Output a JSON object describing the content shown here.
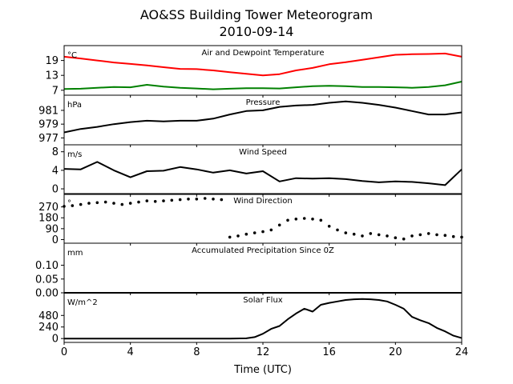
{
  "figure": {
    "title_line1": "AO&SS Building Tower Meteorogram",
    "title_line2": "2010-09-14",
    "xlabel": "Time (UTC)",
    "x_ticks": [
      "0",
      "4",
      "8",
      "12",
      "16",
      "20",
      "24"
    ]
  },
  "chart_data": [
    {
      "type": "line",
      "title": "Air and Dewpoint Temperature",
      "ylabel": "°C",
      "ylim": [
        5,
        25
      ],
      "yticks": [
        7,
        13,
        19
      ],
      "x": [
        0,
        1,
        2,
        3,
        4,
        5,
        6,
        7,
        8,
        9,
        10,
        11,
        12,
        13,
        14,
        15,
        16,
        17,
        18,
        19,
        20,
        21,
        22,
        23,
        24
      ],
      "series": [
        {
          "color": "#ff0000",
          "values": [
            20.5,
            19.8,
            19,
            18.2,
            17.6,
            17,
            16.3,
            15.6,
            15.5,
            15,
            14.3,
            13.6,
            13,
            13.5,
            15,
            16,
            17.5,
            18.3,
            19.3,
            20.3,
            21.3,
            21.5,
            21.6,
            21.8,
            20.5
          ]
        },
        {
          "color": "#008000",
          "values": [
            7.5,
            7.6,
            8,
            8.3,
            8.2,
            9.2,
            8.5,
            8,
            7.7,
            7.4,
            7.6,
            7.8,
            7.8,
            7.7,
            8.2,
            8.6,
            8.8,
            8.6,
            8.3,
            8.3,
            8.2,
            8,
            8.3,
            9,
            10.5
          ]
        }
      ]
    },
    {
      "type": "line",
      "title": "Pressure",
      "ylabel": "hPa",
      "ylim": [
        976,
        983.2
      ],
      "yticks": [
        977,
        979,
        981
      ],
      "x": [
        0,
        1,
        2,
        3,
        4,
        5,
        6,
        7,
        8,
        9,
        10,
        11,
        12,
        13,
        14,
        15,
        16,
        17,
        18,
        19,
        20,
        21,
        22,
        23,
        24
      ],
      "series": [
        {
          "color": "#000000",
          "values": [
            977.8,
            978.3,
            978.6,
            979,
            979.3,
            979.5,
            979.4,
            979.5,
            979.5,
            979.8,
            980.4,
            980.9,
            981,
            981.5,
            981.7,
            981.8,
            982.1,
            982.3,
            982.1,
            981.8,
            981.4,
            980.9,
            980.4,
            980.4,
            980.7
          ]
        }
      ]
    },
    {
      "type": "line",
      "title": "Wind Speed",
      "ylabel": "m/s",
      "ylim": [
        -1.2,
        9.5
      ],
      "yticks": [
        0,
        4,
        8
      ],
      "x": [
        0,
        1,
        2,
        3,
        4,
        5,
        6,
        7,
        8,
        9,
        10,
        11,
        12,
        13,
        14,
        15,
        16,
        17,
        18,
        19,
        20,
        21,
        22,
        23,
        24
      ],
      "series": [
        {
          "color": "#000000",
          "values": [
            4.3,
            4.2,
            5.8,
            4,
            2.5,
            3.8,
            3.9,
            4.7,
            4.2,
            3.5,
            4,
            3.3,
            3.8,
            1.6,
            2.3,
            2.2,
            2.3,
            2.1,
            1.7,
            1.4,
            1.6,
            1.5,
            1.2,
            0.8,
            4.2
          ]
        }
      ]
    },
    {
      "type": "scatter",
      "title": "Wind Direction",
      "ylabel": "°",
      "ylim": [
        -30,
        380
      ],
      "yticks": [
        0,
        90,
        180,
        270
      ],
      "x": [
        0,
        0.5,
        1,
        1.5,
        2,
        2.5,
        3,
        3.5,
        4,
        4.5,
        5,
        5.5,
        6,
        6.5,
        7,
        7.5,
        8,
        8.5,
        9,
        9.5,
        10,
        10.5,
        11,
        11.5,
        12,
        12.5,
        13,
        13.5,
        14,
        14.5,
        15,
        15.5,
        16,
        16.5,
        17,
        17.5,
        18,
        18.5,
        19,
        19.5,
        20,
        20.5,
        21,
        21.5,
        22,
        22.5,
        23,
        23.5,
        24
      ],
      "series": [
        {
          "color": "#000000",
          "values": [
            275,
            280,
            290,
            300,
            305,
            310,
            300,
            290,
            300,
            310,
            320,
            315,
            320,
            325,
            330,
            335,
            335,
            340,
            335,
            330,
            20,
            30,
            45,
            55,
            65,
            80,
            120,
            160,
            170,
            175,
            170,
            160,
            110,
            80,
            55,
            45,
            30,
            50,
            40,
            30,
            15,
            5,
            30,
            40,
            50,
            40,
            35,
            25,
            20
          ]
        }
      ]
    },
    {
      "type": "line",
      "title": "Accumulated Precipitation Since 0Z",
      "ylabel": "mm",
      "ylim": [
        0,
        0.18
      ],
      "yticks": [
        "0.00",
        "0.05",
        "0.10"
      ],
      "x": [
        0,
        24
      ],
      "series": [
        {
          "color": "#000000",
          "values": [
            0,
            0
          ]
        }
      ]
    },
    {
      "type": "line",
      "title": "Solar Flux",
      "ylabel": "W/m^2",
      "ylim": [
        -80,
        950
      ],
      "yticks": [
        0,
        240,
        480
      ],
      "x": [
        0,
        1,
        2,
        3,
        4,
        5,
        6,
        7,
        8,
        9,
        10,
        11,
        11.5,
        12,
        12.5,
        13,
        13.5,
        14,
        14.5,
        15,
        15.5,
        16,
        16.5,
        17,
        17.5,
        18,
        18.5,
        19,
        19.5,
        20,
        20.5,
        21,
        21.5,
        22,
        22.5,
        23,
        23.5,
        24
      ],
      "series": [
        {
          "color": "#000000",
          "values": [
            0,
            0,
            0,
            0,
            0,
            0,
            0,
            0,
            0,
            0,
            0,
            5,
            30,
            100,
            200,
            260,
            400,
            520,
            620,
            560,
            700,
            740,
            770,
            800,
            815,
            820,
            815,
            800,
            770,
            700,
            620,
            450,
            380,
            320,
            220,
            150,
            60,
            10
          ]
        }
      ]
    }
  ]
}
